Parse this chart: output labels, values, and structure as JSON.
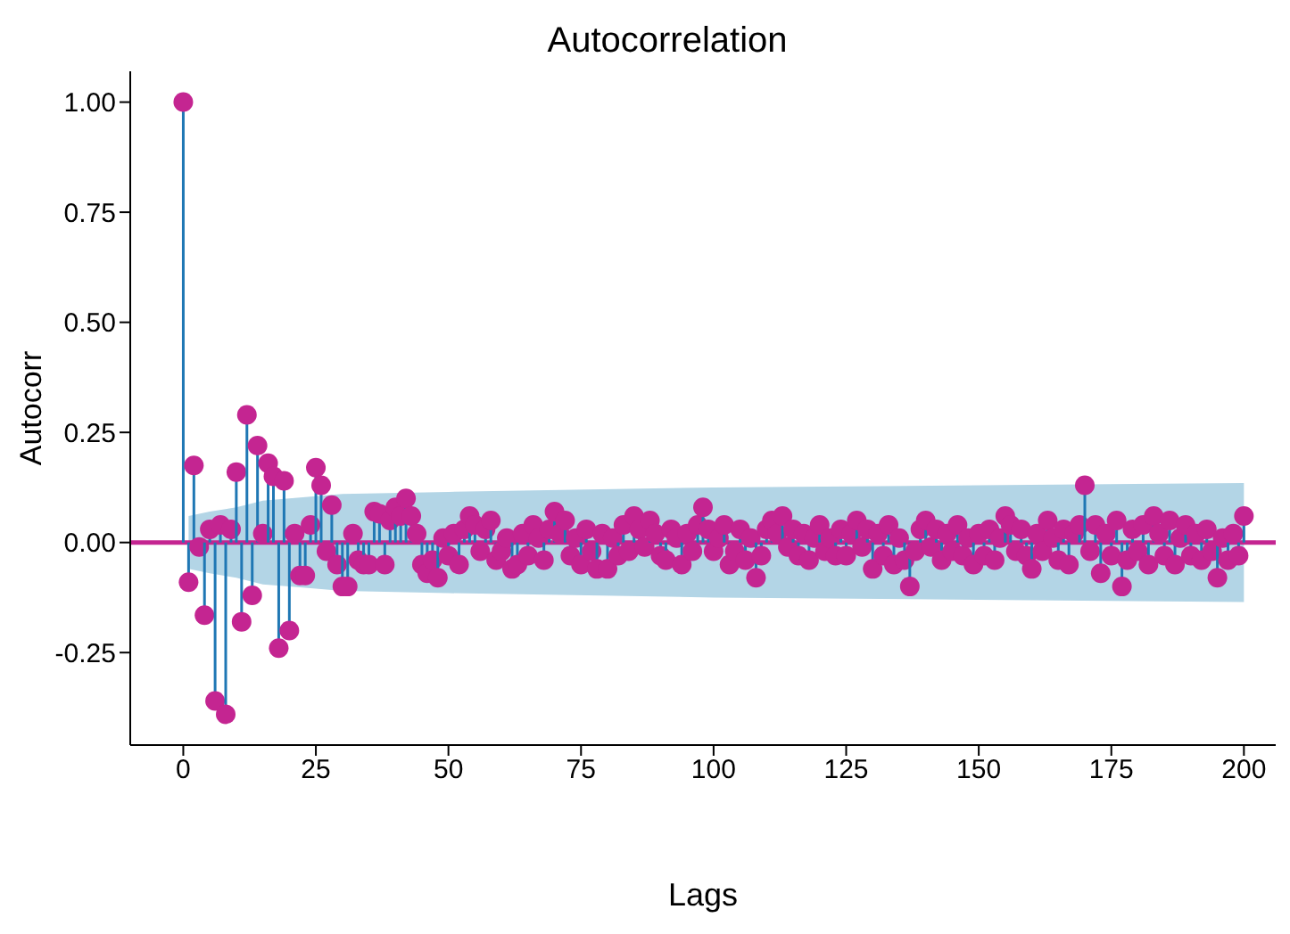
{
  "chart_data": {
    "type": "lollipop",
    "title": "Autocorrelation",
    "xlabel": "Lags",
    "ylabel": "Autocorr",
    "xlim": [
      -10,
      206
    ],
    "ylim": [
      -0.46,
      1.07
    ],
    "xticks": [
      0,
      25,
      50,
      75,
      100,
      125,
      150,
      175,
      200
    ],
    "yticks": [
      {
        "value": -0.25,
        "label": "-0.25"
      },
      {
        "value": 0,
        "label": "0.00"
      },
      {
        "value": 0.25,
        "label": "0.25"
      },
      {
        "value": 0.5,
        "label": "0.50"
      },
      {
        "value": 0.75,
        "label": "0.75"
      },
      {
        "value": 1,
        "label": "1.00"
      }
    ],
    "grid": false,
    "legend": false,
    "series": [
      {
        "color": "#c42591",
        "marker": "circle",
        "x": [
          0,
          1,
          2,
          3,
          4,
          5,
          6,
          7,
          8,
          9,
          10,
          11,
          12,
          13,
          14,
          15,
          16,
          17,
          18,
          19,
          20,
          21,
          22,
          23,
          24,
          25,
          26,
          27,
          28,
          29,
          30,
          31,
          32,
          33,
          34,
          35,
          36,
          37,
          38,
          39,
          40,
          41,
          42,
          43,
          44,
          45,
          46,
          47,
          48,
          49,
          50,
          51,
          52,
          53,
          54,
          55,
          56,
          57,
          58,
          59,
          60,
          61,
          62,
          63,
          64,
          65,
          66,
          67,
          68,
          69,
          70,
          71,
          72,
          73,
          74,
          75,
          76,
          77,
          78,
          79,
          80,
          81,
          82,
          83,
          84,
          85,
          86,
          87,
          88,
          89,
          90,
          91,
          92,
          93,
          94,
          95,
          96,
          97,
          98,
          99,
          100,
          101,
          102,
          103,
          104,
          105,
          106,
          107,
          108,
          109,
          110,
          111,
          112,
          113,
          114,
          115,
          116,
          117,
          118,
          119,
          120,
          121,
          122,
          123,
          124,
          125,
          126,
          127,
          128,
          129,
          130,
          131,
          132,
          133,
          134,
          135,
          136,
          137,
          138,
          139,
          140,
          141,
          142,
          143,
          144,
          145,
          146,
          147,
          148,
          149,
          150,
          151,
          152,
          153,
          154,
          155,
          156,
          157,
          158,
          159,
          160,
          161,
          162,
          163,
          164,
          165,
          166,
          167,
          168,
          169,
          170,
          171,
          172,
          173,
          174,
          175,
          176,
          177,
          178,
          179,
          180,
          181,
          182,
          183,
          184,
          185,
          186,
          187,
          188,
          189,
          190,
          191,
          192,
          193,
          194,
          195,
          196,
          197,
          198,
          199,
          200
        ],
        "values": [
          1.0,
          -0.09,
          0.175,
          -0.01,
          -0.165,
          0.03,
          -0.36,
          0.04,
          -0.39,
          0.03,
          0.16,
          -0.18,
          0.29,
          -0.12,
          0.22,
          0.02,
          0.18,
          0.15,
          -0.24,
          0.14,
          -0.2,
          0.02,
          -0.075,
          -0.075,
          0.04,
          0.17,
          0.13,
          -0.02,
          0.085,
          -0.05,
          -0.1,
          -0.1,
          0.02,
          -0.04,
          -0.05,
          -0.05,
          0.07,
          0.065,
          -0.05,
          0.05,
          0.08,
          0.06,
          0.1,
          0.06,
          0.02,
          -0.05,
          -0.07,
          -0.04,
          -0.08,
          0.01,
          -0.03,
          0.02,
          -0.05,
          0.03,
          0.06,
          0.04,
          -0.02,
          0.03,
          0.05,
          -0.04,
          -0.02,
          0.01,
          -0.06,
          -0.05,
          0.02,
          -0.03,
          0.04,
          0.01,
          -0.04,
          0.03,
          0.07,
          0.02,
          0.05,
          -0.03,
          0.01,
          -0.05,
          0.03,
          -0.02,
          -0.06,
          0.02,
          -0.06,
          0.01,
          -0.03,
          0.04,
          -0.02,
          0.06,
          0.03,
          -0.01,
          0.05,
          0.02,
          -0.03,
          -0.04,
          0.03,
          0.01,
          -0.05,
          0.02,
          -0.02,
          0.04,
          0.08,
          0.03,
          -0.02,
          0.01,
          0.04,
          -0.05,
          -0.02,
          0.03,
          -0.04,
          0.01,
          -0.08,
          -0.03,
          0.03,
          0.05,
          0.02,
          0.06,
          -0.01,
          0.03,
          -0.03,
          0.02,
          -0.04,
          0.01,
          0.04,
          -0.02,
          0.01,
          -0.03,
          0.03,
          -0.03,
          0.02,
          0.05,
          -0.01,
          0.03,
          -0.06,
          0.02,
          -0.03,
          0.04,
          -0.05,
          0.01,
          -0.04,
          -0.1,
          -0.02,
          0.03,
          0.05,
          -0.01,
          0.03,
          -0.04,
          0.02,
          -0.02,
          0.04,
          -0.03,
          0.01,
          -0.05,
          0.02,
          -0.03,
          0.03,
          -0.04,
          0.01,
          0.06,
          0.04,
          -0.02,
          0.03,
          -0.03,
          -0.06,
          0.02,
          -0.02,
          0.05,
          0.01,
          -0.04,
          0.03,
          -0.05,
          0.02,
          0.04,
          0.13,
          -0.02,
          0.04,
          -0.07,
          0.02,
          -0.03,
          0.05,
          -0.1,
          -0.04,
          0.03,
          -0.02,
          0.04,
          -0.05,
          0.06,
          0.02,
          -0.03,
          0.05,
          -0.05,
          0.01,
          0.04,
          -0.03,
          0.02,
          -0.04,
          0.03,
          -0.02,
          -0.08,
          0.01,
          -0.04,
          0.02,
          -0.03,
          0.06
        ]
      },
      {
        "type": "line",
        "color": "#c42591",
        "marker": "none",
        "x": [
          -10,
          1,
          5,
          10,
          15,
          20,
          25,
          30,
          50,
          100,
          150,
          200,
          206
        ],
        "values": [
          0,
          0,
          0,
          0,
          0,
          0,
          0,
          0,
          0,
          0,
          0,
          0,
          0
        ],
        "lower": [
          null,
          -0.06,
          -0.07,
          -0.08,
          -0.095,
          -0.1,
          -0.105,
          -0.11,
          -0.115,
          -0.125,
          -0.13,
          -0.135,
          null
        ],
        "upper": [
          null,
          0.06,
          0.07,
          0.08,
          0.095,
          0.1,
          0.105,
          0.11,
          0.115,
          0.125,
          0.13,
          0.135,
          null
        ]
      }
    ]
  }
}
